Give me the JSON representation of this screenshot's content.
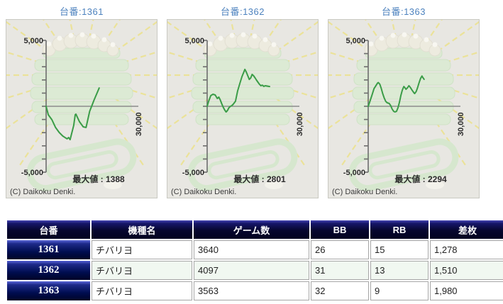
{
  "colors": {
    "title_link": "#4d82be",
    "line_green": "#3a9c47",
    "axis_gray": "#7a7a7a",
    "panel_bg": "#e8e7e2",
    "table_navy_dark": "#06062e",
    "table_navy_cell": "#000d50",
    "alt_row_mint": "#f1f8f1"
  },
  "chart_style": {
    "line_color": "#3a9c47",
    "axis_color": "#6e6e6e",
    "zero_line_color": "#8b8b8b",
    "y_max": 5000,
    "y_min": -5000,
    "x_max": 30000
  },
  "chart_data": [
    {
      "type": "line",
      "title": "台番:1361",
      "y_range": [
        -5000,
        5000
      ],
      "x_range": [
        0,
        30000
      ],
      "y_tick_labels": [
        "5,000",
        "-5,000"
      ],
      "x_end_label": "30,000",
      "max_value": 1388,
      "max_label": "最大値 : 1388",
      "copyright": "(C) Daikoku Denki.",
      "points": [
        [
          0,
          0
        ],
        [
          720,
          -645
        ],
        [
          1890,
          -1020
        ],
        [
          3060,
          -1610
        ],
        [
          4260,
          -1990
        ],
        [
          5430,
          -2260
        ],
        [
          6150,
          -2370
        ],
        [
          6840,
          -2470
        ],
        [
          7320,
          -2370
        ],
        [
          7800,
          -2530
        ],
        [
          8970,
          -1450
        ],
        [
          9450,
          -645
        ],
        [
          9690,
          -590
        ],
        [
          10860,
          -1180
        ],
        [
          12060,
          -1560
        ],
        [
          12990,
          -1610
        ],
        [
          14160,
          -375
        ],
        [
          14880,
          50
        ],
        [
          15600,
          480
        ],
        [
          17250,
          1388
        ]
      ]
    },
    {
      "type": "line",
      "title": "台番:1362",
      "y_range": [
        -5000,
        5000
      ],
      "x_range": [
        0,
        30000
      ],
      "y_tick_labels": [
        "5,000",
        "-5,000"
      ],
      "x_end_label": "30,000",
      "max_value": 2801,
      "max_label": "最大値 : 2801",
      "copyright": "(C) Daikoku Denki.",
      "points": [
        [
          0,
          0
        ],
        [
          480,
          380
        ],
        [
          1170,
          810
        ],
        [
          1890,
          915
        ],
        [
          2610,
          860
        ],
        [
          3300,
          590
        ],
        [
          3780,
          700
        ],
        [
          4260,
          480
        ],
        [
          4710,
          215
        ],
        [
          5190,
          -55
        ],
        [
          5670,
          -270
        ],
        [
          6150,
          -430
        ],
        [
          6600,
          -320
        ],
        [
          7080,
          -110
        ],
        [
          7560,
          0
        ],
        [
          8040,
          55
        ],
        [
          8490,
          160
        ],
        [
          9210,
          380
        ],
        [
          9930,
          1180
        ],
        [
          10620,
          1720
        ],
        [
          11340,
          2260
        ],
        [
          11820,
          2530
        ],
        [
          12270,
          2801
        ],
        [
          12750,
          2580
        ],
        [
          13230,
          2310
        ],
        [
          13710,
          2040
        ],
        [
          14160,
          2150
        ],
        [
          14640,
          2420
        ],
        [
          15120,
          2310
        ],
        [
          15600,
          2150
        ],
        [
          16050,
          1990
        ],
        [
          16530,
          1830
        ],
        [
          17010,
          1670
        ],
        [
          17490,
          1560
        ],
        [
          17940,
          1610
        ],
        [
          18420,
          1510
        ],
        [
          18900,
          1560
        ],
        [
          20310,
          1500
        ]
      ]
    },
    {
      "type": "line",
      "title": "台番:1363",
      "y_range": [
        -5000,
        5000
      ],
      "x_range": [
        0,
        30000
      ],
      "y_tick_labels": [
        "5,000",
        "-5,000"
      ],
      "x_end_label": "30,000",
      "max_value": 2294,
      "max_label": "最大値 : 2294",
      "copyright": "(C) Daikoku Denki.",
      "points": [
        [
          0,
          0
        ],
        [
          480,
          320
        ],
        [
          1170,
          810
        ],
        [
          1890,
          1340
        ],
        [
          3060,
          1770
        ],
        [
          3300,
          1800
        ],
        [
          3780,
          1670
        ],
        [
          4260,
          1340
        ],
        [
          4710,
          970
        ],
        [
          5190,
          640
        ],
        [
          5670,
          380
        ],
        [
          6150,
          270
        ],
        [
          6840,
          215
        ],
        [
          7320,
          50
        ],
        [
          7800,
          -215
        ],
        [
          8280,
          -380
        ],
        [
          8730,
          -430
        ],
        [
          9210,
          -380
        ],
        [
          9690,
          -110
        ],
        [
          10170,
          320
        ],
        [
          10620,
          810
        ],
        [
          11100,
          1230
        ],
        [
          11580,
          1500
        ],
        [
          11820,
          1450
        ],
        [
          12270,
          1290
        ],
        [
          12750,
          1400
        ],
        [
          13230,
          1560
        ],
        [
          13470,
          1500
        ],
        [
          13950,
          1340
        ],
        [
          14400,
          1180
        ],
        [
          14880,
          1020
        ],
        [
          15120,
          970
        ],
        [
          15600,
          1120
        ],
        [
          16050,
          1400
        ],
        [
          16530,
          1770
        ],
        [
          17010,
          2100
        ],
        [
          17490,
          2294
        ],
        [
          17730,
          2200
        ],
        [
          18180,
          2050
        ]
      ]
    }
  ],
  "table": {
    "headers": [
      "台番",
      "機種名",
      "ゲーム数",
      "BB",
      "RB",
      "差枚"
    ],
    "rows": [
      [
        "1361",
        "チバリヨ",
        "3640",
        "26",
        "15",
        "1,278"
      ],
      [
        "1362",
        "チバリヨ",
        "4097",
        "31",
        "13",
        "1,510"
      ],
      [
        "1363",
        "チバリヨ",
        "3563",
        "32",
        "9",
        "1,980"
      ]
    ]
  }
}
